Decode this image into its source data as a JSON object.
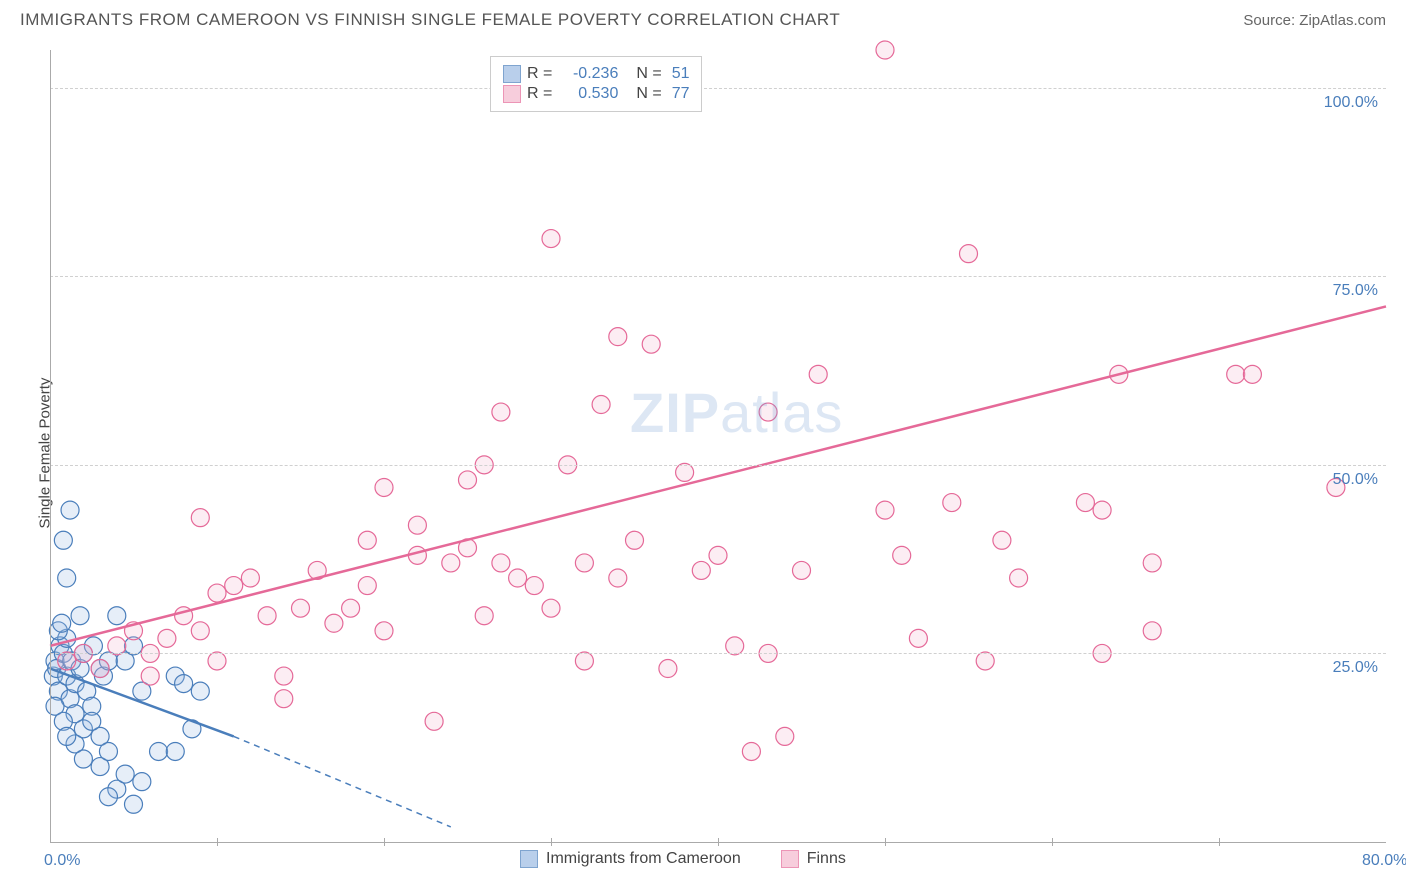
{
  "header": {
    "title": "IMMIGRANTS FROM CAMEROON VS FINNISH SINGLE FEMALE POVERTY CORRELATION CHART",
    "source_label": "Source: ",
    "source_name": "ZipAtlas.com"
  },
  "chart": {
    "type": "scatter",
    "ylabel": "Single Female Poverty",
    "xlim": [
      0,
      80
    ],
    "ylim": [
      0,
      105
    ],
    "xtick_labels": [
      "0.0%",
      "80.0%"
    ],
    "xtick_positions": [
      0,
      80
    ],
    "xtick_minor_positions": [
      10,
      20,
      30,
      40,
      50,
      60,
      70
    ],
    "ytick_labels": [
      "25.0%",
      "50.0%",
      "75.0%",
      "100.0%"
    ],
    "ytick_positions": [
      25,
      50,
      75,
      100
    ],
    "grid_color": "#d0d0d0",
    "axis_color": "#aaaaaa",
    "background_color": "#ffffff",
    "tick_label_color": "#4a7ebb",
    "axis_label_color": "#444444",
    "marker_radius": 9,
    "marker_stroke_width": 1.2,
    "marker_fill_opacity": 0.25,
    "trend_line_width": 2.5,
    "series": [
      {
        "name": "Immigrants from Cameroon",
        "color_stroke": "#4a7ebb",
        "color_fill": "#9cbce3",
        "r_value": "-0.236",
        "n_value": "51",
        "trend": {
          "x1": 0,
          "y1": 23,
          "x2": 11,
          "y2": 14,
          "dashed_ext": {
            "x2": 24,
            "y2": 2
          }
        },
        "points": [
          [
            0.2,
            22
          ],
          [
            0.3,
            24
          ],
          [
            0.5,
            20
          ],
          [
            0.4,
            23
          ],
          [
            0.6,
            26
          ],
          [
            0.8,
            25
          ],
          [
            1.0,
            22
          ],
          [
            1.2,
            19
          ],
          [
            1.0,
            27
          ],
          [
            1.3,
            24
          ],
          [
            1.5,
            21
          ],
          [
            0.5,
            28
          ],
          [
            0.7,
            29
          ],
          [
            1.8,
            23
          ],
          [
            2.0,
            25
          ],
          [
            2.2,
            20
          ],
          [
            2.6,
            26
          ],
          [
            3.0,
            23
          ],
          [
            1.5,
            17
          ],
          [
            2.0,
            15
          ],
          [
            2.5,
            18
          ],
          [
            3.0,
            14
          ],
          [
            3.2,
            22
          ],
          [
            3.5,
            24
          ],
          [
            0.8,
            40
          ],
          [
            1.2,
            44
          ],
          [
            1.0,
            35
          ],
          [
            4.0,
            30
          ],
          [
            4.5,
            24
          ],
          [
            5.0,
            26
          ],
          [
            5.5,
            20
          ],
          [
            7.5,
            22
          ],
          [
            8.0,
            21
          ],
          [
            3.0,
            10
          ],
          [
            3.5,
            12
          ],
          [
            4.0,
            7
          ],
          [
            4.5,
            9
          ],
          [
            5.0,
            5
          ],
          [
            5.5,
            8
          ],
          [
            6.5,
            12
          ],
          [
            7.5,
            12
          ],
          [
            8.5,
            15
          ],
          [
            9.0,
            20
          ],
          [
            1.5,
            13
          ],
          [
            2.0,
            11
          ],
          [
            2.5,
            16
          ],
          [
            0.3,
            18
          ],
          [
            0.8,
            16
          ],
          [
            1.0,
            14
          ],
          [
            3.5,
            6
          ],
          [
            1.8,
            30
          ]
        ]
      },
      {
        "name": "Finns",
        "color_stroke": "#e56998",
        "color_fill": "#f5b8ce",
        "r_value": "0.530",
        "n_value": "77",
        "trend": {
          "x1": 0,
          "y1": 26,
          "x2": 80,
          "y2": 71
        },
        "points": [
          [
            1,
            24
          ],
          [
            2,
            25
          ],
          [
            3,
            23
          ],
          [
            4,
            26
          ],
          [
            5,
            28
          ],
          [
            6,
            25
          ],
          [
            7,
            27
          ],
          [
            8,
            30
          ],
          [
            9,
            28
          ],
          [
            10,
            24
          ],
          [
            11,
            34
          ],
          [
            12,
            35
          ],
          [
            13,
            30
          ],
          [
            14,
            22
          ],
          [
            15,
            31
          ],
          [
            16,
            36
          ],
          [
            17,
            29
          ],
          [
            18,
            31
          ],
          [
            19,
            34
          ],
          [
            19,
            40
          ],
          [
            20,
            47
          ],
          [
            20,
            28
          ],
          [
            22,
            38
          ],
          [
            22,
            42
          ],
          [
            23,
            16
          ],
          [
            24,
            37
          ],
          [
            25,
            48
          ],
          [
            25,
            39
          ],
          [
            26,
            30
          ],
          [
            26,
            50
          ],
          [
            9,
            43
          ],
          [
            27,
            37
          ],
          [
            27,
            57
          ],
          [
            28,
            35
          ],
          [
            29,
            34
          ],
          [
            30,
            80
          ],
          [
            30,
            31
          ],
          [
            31,
            50
          ],
          [
            32,
            37
          ],
          [
            32,
            24
          ],
          [
            33,
            58
          ],
          [
            34,
            35
          ],
          [
            34,
            67
          ],
          [
            35,
            40
          ],
          [
            36,
            66
          ],
          [
            37,
            23
          ],
          [
            38,
            49
          ],
          [
            39,
            36
          ],
          [
            40,
            38
          ],
          [
            41,
            26
          ],
          [
            42,
            12
          ],
          [
            43,
            25
          ],
          [
            44,
            14
          ],
          [
            45,
            36
          ],
          [
            46,
            62
          ],
          [
            50,
            44
          ],
          [
            51,
            38
          ],
          [
            52,
            27
          ],
          [
            54,
            45
          ],
          [
            55,
            78
          ],
          [
            56,
            24
          ],
          [
            57,
            40
          ],
          [
            58,
            35
          ],
          [
            62,
            45
          ],
          [
            63,
            25
          ],
          [
            43,
            57
          ],
          [
            50,
            105
          ],
          [
            63,
            44
          ],
          [
            64,
            62
          ],
          [
            66,
            37
          ],
          [
            71,
            62
          ],
          [
            72,
            62
          ],
          [
            77,
            47
          ],
          [
            14,
            19
          ],
          [
            66,
            28
          ],
          [
            10,
            33
          ],
          [
            6,
            22
          ]
        ]
      }
    ]
  },
  "legend_top": {
    "r_label": "R =",
    "n_label": "N ="
  },
  "legend_bottom": {
    "series1_label": "Immigrants from Cameroon",
    "series2_label": "Finns"
  },
  "watermark": {
    "text_bold": "ZIP",
    "text_light": "atlas"
  }
}
